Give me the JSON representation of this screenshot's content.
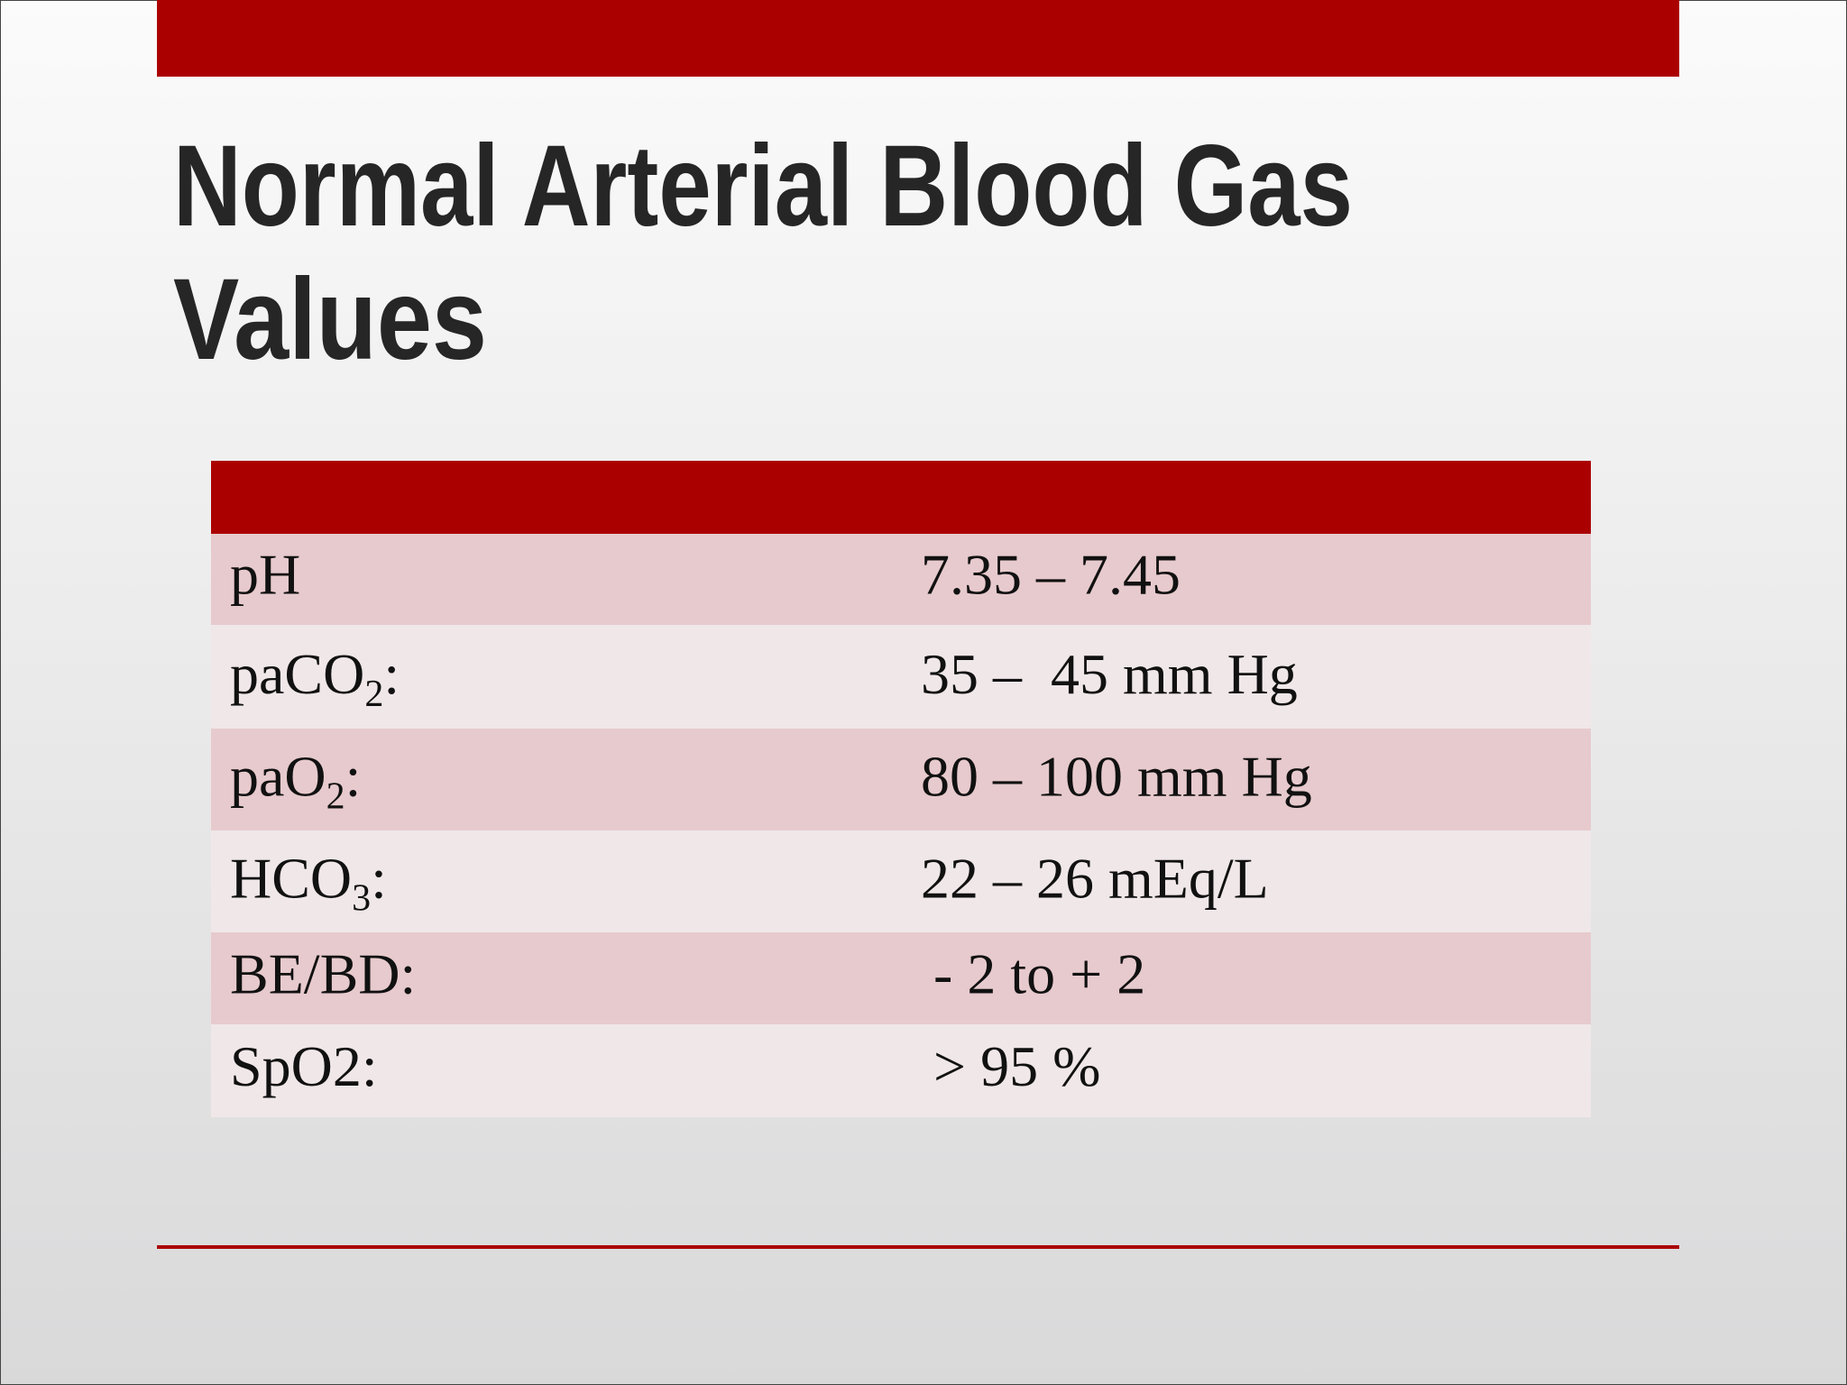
{
  "slide": {
    "title": [
      "Normal Arterial Blood Gas",
      "Values"
    ],
    "table": {
      "rows": [
        {
          "label": {
            "main": "pH"
          },
          "value": "7.35 – 7.45"
        },
        {
          "label": {
            "main": "paCO",
            "sub": "2",
            "tail": ":"
          },
          "value": "35 –  45 mm Hg"
        },
        {
          "label": {
            "main": "paO",
            "sub": "2",
            "tail": ":"
          },
          "value": "80 – 100 mm Hg"
        },
        {
          "label": {
            "main": "HCO",
            "sub": "3",
            "tail": ":"
          },
          "value": "22 – 26 mEq/L"
        },
        {
          "label": {
            "main": "BE/BD:"
          },
          "value": "- 2 to + 2"
        },
        {
          "label": {
            "main": "SpO2:"
          },
          "value": "> 95 %"
        }
      ]
    }
  }
}
